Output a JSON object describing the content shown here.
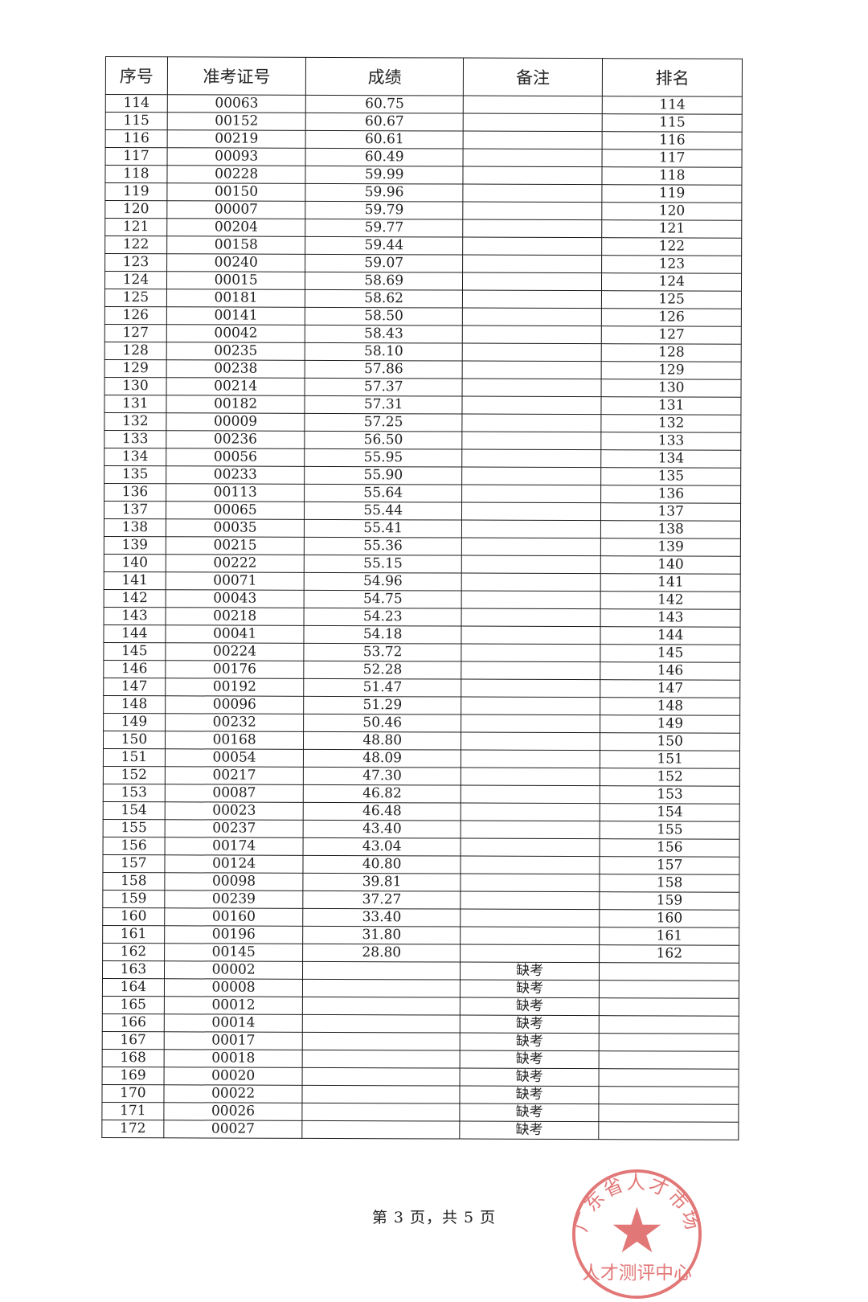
{
  "table": {
    "headers": [
      "序号",
      "准考证号",
      "成绩",
      "备注",
      "排名"
    ],
    "rows": [
      [
        "114",
        "00063",
        "60.75",
        "",
        "114"
      ],
      [
        "115",
        "00152",
        "60.67",
        "",
        "115"
      ],
      [
        "116",
        "00219",
        "60.61",
        "",
        "116"
      ],
      [
        "117",
        "00093",
        "60.49",
        "",
        "117"
      ],
      [
        "118",
        "00228",
        "59.99",
        "",
        "118"
      ],
      [
        "119",
        "00150",
        "59.96",
        "",
        "119"
      ],
      [
        "120",
        "00007",
        "59.79",
        "",
        "120"
      ],
      [
        "121",
        "00204",
        "59.77",
        "",
        "121"
      ],
      [
        "122",
        "00158",
        "59.44",
        "",
        "122"
      ],
      [
        "123",
        "00240",
        "59.07",
        "",
        "123"
      ],
      [
        "124",
        "00015",
        "58.69",
        "",
        "124"
      ],
      [
        "125",
        "00181",
        "58.62",
        "",
        "125"
      ],
      [
        "126",
        "00141",
        "58.50",
        "",
        "126"
      ],
      [
        "127",
        "00042",
        "58.43",
        "",
        "127"
      ],
      [
        "128",
        "00235",
        "58.10",
        "",
        "128"
      ],
      [
        "129",
        "00238",
        "57.86",
        "",
        "129"
      ],
      [
        "130",
        "00214",
        "57.37",
        "",
        "130"
      ],
      [
        "131",
        "00182",
        "57.31",
        "",
        "131"
      ],
      [
        "132",
        "00009",
        "57.25",
        "",
        "132"
      ],
      [
        "133",
        "00236",
        "56.50",
        "",
        "133"
      ],
      [
        "134",
        "00056",
        "55.95",
        "",
        "134"
      ],
      [
        "135",
        "00233",
        "55.90",
        "",
        "135"
      ],
      [
        "136",
        "00113",
        "55.64",
        "",
        "136"
      ],
      [
        "137",
        "00065",
        "55.44",
        "",
        "137"
      ],
      [
        "138",
        "00035",
        "55.41",
        "",
        "138"
      ],
      [
        "139",
        "00215",
        "55.36",
        "",
        "139"
      ],
      [
        "140",
        "00222",
        "55.15",
        "",
        "140"
      ],
      [
        "141",
        "00071",
        "54.96",
        "",
        "141"
      ],
      [
        "142",
        "00043",
        "54.75",
        "",
        "142"
      ],
      [
        "143",
        "00218",
        "54.23",
        "",
        "143"
      ],
      [
        "144",
        "00041",
        "54.18",
        "",
        "144"
      ],
      [
        "145",
        "00224",
        "53.72",
        "",
        "145"
      ],
      [
        "146",
        "00176",
        "52.28",
        "",
        "146"
      ],
      [
        "147",
        "00192",
        "51.47",
        "",
        "147"
      ],
      [
        "148",
        "00096",
        "51.29",
        "",
        "148"
      ],
      [
        "149",
        "00232",
        "50.46",
        "",
        "149"
      ],
      [
        "150",
        "00168",
        "48.80",
        "",
        "150"
      ],
      [
        "151",
        "00054",
        "48.09",
        "",
        "151"
      ],
      [
        "152",
        "00217",
        "47.30",
        "",
        "152"
      ],
      [
        "153",
        "00087",
        "46.82",
        "",
        "153"
      ],
      [
        "154",
        "00023",
        "46.48",
        "",
        "154"
      ],
      [
        "155",
        "00237",
        "43.40",
        "",
        "155"
      ],
      [
        "156",
        "00174",
        "43.04",
        "",
        "156"
      ],
      [
        "157",
        "00124",
        "40.80",
        "",
        "157"
      ],
      [
        "158",
        "00098",
        "39.81",
        "",
        "158"
      ],
      [
        "159",
        "00239",
        "37.27",
        "",
        "159"
      ],
      [
        "160",
        "00160",
        "33.40",
        "",
        "160"
      ],
      [
        "161",
        "00196",
        "31.80",
        "",
        "161"
      ],
      [
        "162",
        "00145",
        "28.80",
        "",
        "162"
      ],
      [
        "163",
        "00002",
        "",
        "缺考",
        ""
      ],
      [
        "164",
        "00008",
        "",
        "缺考",
        ""
      ],
      [
        "165",
        "00012",
        "",
        "缺考",
        ""
      ],
      [
        "166",
        "00014",
        "",
        "缺考",
        ""
      ],
      [
        "167",
        "00017",
        "",
        "缺考",
        ""
      ],
      [
        "168",
        "00018",
        "",
        "缺考",
        ""
      ],
      [
        "169",
        "00020",
        "",
        "缺考",
        ""
      ],
      [
        "170",
        "00022",
        "",
        "缺考",
        ""
      ],
      [
        "171",
        "00026",
        "",
        "缺考",
        ""
      ],
      [
        "172",
        "00027",
        "",
        "缺考",
        ""
      ]
    ]
  },
  "footer": {
    "page_text": "第 3 页，共 5 页"
  },
  "seal": {
    "text_top": "广东省人才市场",
    "text_bottom": "人才测评中心",
    "color": "#d94a4a"
  }
}
